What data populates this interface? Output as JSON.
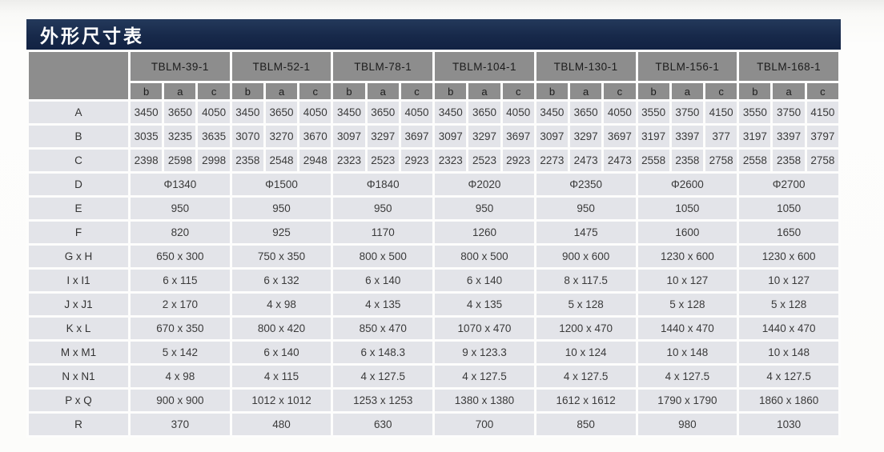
{
  "title": "外形尺寸表",
  "colors": {
    "title_bar_navy": "#17294a",
    "header_gray": "#8d8d8d",
    "cell_gray": "#e3e4e9",
    "gridline_white": "#fdfdfc",
    "title_text": "#ffffff",
    "cell_text": "#3a3a3a"
  },
  "table": {
    "models": [
      "TBLM-39-1",
      "TBLM-52-1",
      "TBLM-78-1",
      "TBLM-104-1",
      "TBLM-130-1",
      "TBLM-156-1",
      "TBLM-168-1"
    ],
    "sub_columns": [
      "b",
      "a",
      "c"
    ],
    "rows_abc": [
      {
        "label": "A",
        "values": [
          [
            "3450",
            "3650",
            "4050"
          ],
          [
            "3450",
            "3650",
            "4050"
          ],
          [
            "3450",
            "3650",
            "4050"
          ],
          [
            "3450",
            "3650",
            "4050"
          ],
          [
            "3450",
            "3650",
            "4050"
          ],
          [
            "3550",
            "3750",
            "4150"
          ],
          [
            "3550",
            "3750",
            "4150"
          ]
        ]
      },
      {
        "label": "B",
        "values": [
          [
            "3035",
            "3235",
            "3635"
          ],
          [
            "3070",
            "3270",
            "3670"
          ],
          [
            "3097",
            "3297",
            "3697"
          ],
          [
            "3097",
            "3297",
            "3697"
          ],
          [
            "3097",
            "3297",
            "3697"
          ],
          [
            "3197",
            "3397",
            "377"
          ],
          [
            "3197",
            "3397",
            "3797"
          ]
        ]
      },
      {
        "label": "C",
        "values": [
          [
            "2398",
            "2598",
            "2998"
          ],
          [
            "2358",
            "2548",
            "2948"
          ],
          [
            "2323",
            "2523",
            "2923"
          ],
          [
            "2323",
            "2523",
            "2923"
          ],
          [
            "2273",
            "2473",
            "2473"
          ],
          [
            "2558",
            "2358",
            "2758"
          ],
          [
            "2558",
            "2358",
            "2758"
          ]
        ]
      }
    ],
    "rows_span": [
      {
        "label": "D",
        "values": [
          "Φ1340",
          "Φ1500",
          "Φ1840",
          "Φ2020",
          "Φ2350",
          "Φ2600",
          "Φ2700"
        ]
      },
      {
        "label": "E",
        "values": [
          "950",
          "950",
          "950",
          "950",
          "950",
          "1050",
          "1050"
        ]
      },
      {
        "label": "F",
        "values": [
          "820",
          "925",
          "1170",
          "1260",
          "1475",
          "1600",
          "1650"
        ]
      },
      {
        "label": "G x H",
        "values": [
          "650 x 300",
          "750 x 350",
          "800 x 500",
          "800 x 500",
          "900 x 600",
          "1230 x 600",
          "1230 x 600"
        ]
      },
      {
        "label": "I x I1",
        "values": [
          "6 x 115",
          "6 x 132",
          "6 x 140",
          "6 x 140",
          "8 x 117.5",
          "10 x 127",
          "10 x 127"
        ]
      },
      {
        "label": "J x J1",
        "values": [
          "2 x 170",
          "4 x 98",
          "4 x 135",
          "4 x 135",
          "5 x 128",
          "5 x 128",
          "5 x 128"
        ]
      },
      {
        "label": "K x L",
        "values": [
          "670 x 350",
          "800 x 420",
          "850 x 470",
          "1070 x 470",
          "1200 x 470",
          "1440 x 470",
          "1440 x 470"
        ]
      },
      {
        "label": "M x M1",
        "values": [
          "5 x 142",
          "6 x 140",
          "6 x 148.3",
          "9 x 123.3",
          "10 x 124",
          "10 x 148",
          "10 x 148"
        ]
      },
      {
        "label": "N x N1",
        "values": [
          "4 x 98",
          "4 x 115",
          "4 x 127.5",
          "4 x 127.5",
          "4 x 127.5",
          "4 x 127.5",
          "4 x 127.5"
        ]
      },
      {
        "label": "P x Q",
        "values": [
          "900 x 900",
          "1012 x 1012",
          "1253 x 1253",
          "1380 x 1380",
          "1612 x 1612",
          "1790 x 1790",
          "1860 x 1860"
        ]
      },
      {
        "label": "R",
        "values": [
          "370",
          "480",
          "630",
          "700",
          "850",
          "980",
          "1030"
        ]
      }
    ]
  }
}
